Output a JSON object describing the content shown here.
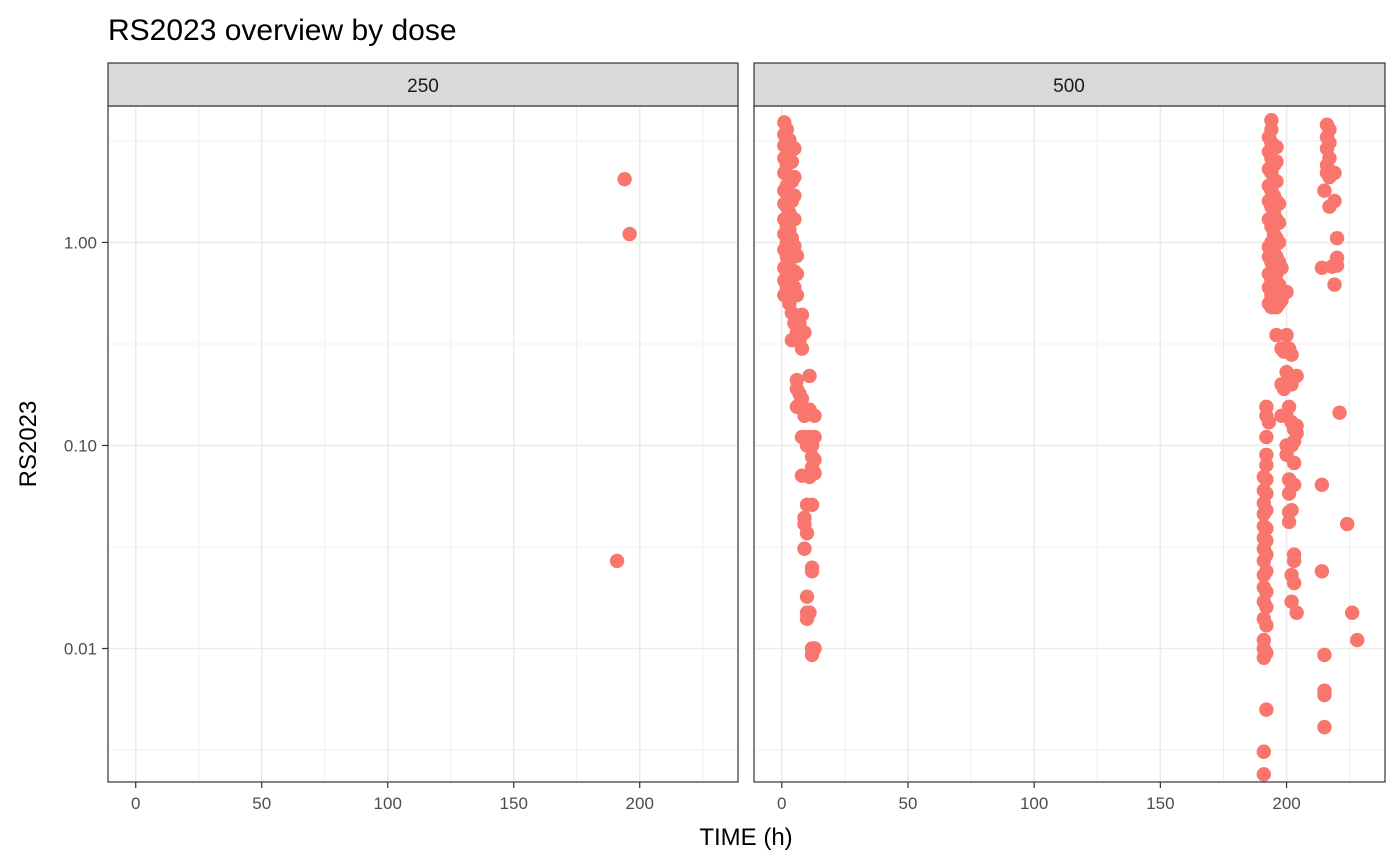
{
  "chart_data": {
    "type": "scatter",
    "title": "RS2023 overview by dose",
    "xlabel": "TIME (h)",
    "ylabel": "RS2023",
    "y_scale": "log10",
    "ylim": [
      0.0022,
      4.7
    ],
    "xlim": [
      -11,
      239
    ],
    "x_ticks": [
      0,
      50,
      100,
      150,
      200
    ],
    "x_tick_labels": [
      "0",
      "50",
      "100",
      "150",
      "200"
    ],
    "y_ticks": [
      0.01,
      0.1,
      1
    ],
    "y_tick_labels": [
      "0.01",
      "0.10",
      "1.00"
    ],
    "grid": true,
    "point_color": "#F8766D",
    "strip_fill": "#D9D9D9",
    "panels": [
      {
        "facet": "250",
        "points": [
          [
            194,
            2.05
          ],
          [
            196,
            1.1
          ],
          [
            191,
            0.027
          ]
        ]
      },
      {
        "facet": "500",
        "points": [
          [
            1,
            0.55
          ],
          [
            1,
            0.65
          ],
          [
            1,
            0.75
          ],
          [
            1,
            0.92
          ],
          [
            1,
            1.1
          ],
          [
            1,
            1.3
          ],
          [
            1,
            1.55
          ],
          [
            1,
            1.8
          ],
          [
            1,
            2.2
          ],
          [
            1,
            2.6
          ],
          [
            1,
            3.0
          ],
          [
            1,
            3.4
          ],
          [
            1,
            3.9
          ],
          [
            2,
            0.6
          ],
          [
            2,
            0.7
          ],
          [
            2,
            0.85
          ],
          [
            2,
            1.0
          ],
          [
            2,
            1.2
          ],
          [
            2,
            1.5
          ],
          [
            2,
            1.9
          ],
          [
            2,
            2.4
          ],
          [
            2,
            3.0
          ],
          [
            2,
            3.6
          ],
          [
            3,
            0.5
          ],
          [
            3,
            0.62
          ],
          [
            3,
            0.8
          ],
          [
            3,
            0.95
          ],
          [
            3,
            1.15
          ],
          [
            3,
            1.4
          ],
          [
            3,
            1.75
          ],
          [
            3,
            2.1
          ],
          [
            3,
            2.7
          ],
          [
            3,
            3.2
          ],
          [
            4,
            0.33
          ],
          [
            4,
            0.45
          ],
          [
            4,
            0.55
          ],
          [
            4,
            0.68
          ],
          [
            4,
            0.85
          ],
          [
            4,
            1.05
          ],
          [
            4,
            1.3
          ],
          [
            4,
            1.6
          ],
          [
            4,
            2.0
          ],
          [
            4,
            2.5
          ],
          [
            5,
            0.4
          ],
          [
            5,
            0.6
          ],
          [
            5,
            0.72
          ],
          [
            5,
            0.96
          ],
          [
            5,
            1.3
          ],
          [
            5,
            1.7
          ],
          [
            5,
            2.1
          ],
          [
            5,
            2.9
          ],
          [
            6,
            0.36
          ],
          [
            6,
            0.55
          ],
          [
            6,
            0.7
          ],
          [
            6,
            0.86
          ],
          [
            6,
            0.21
          ],
          [
            6,
            0.19
          ],
          [
            6,
            0.155
          ],
          [
            7,
            0.4
          ],
          [
            7,
            0.33
          ],
          [
            7,
            0.18
          ],
          [
            7,
            0.16
          ],
          [
            8,
            0.44
          ],
          [
            8,
            0.3
          ],
          [
            8,
            0.17
          ],
          [
            8,
            0.11
          ],
          [
            8,
            0.071
          ],
          [
            9,
            0.36
          ],
          [
            9,
            0.14
          ],
          [
            9,
            0.044
          ],
          [
            9,
            0.041
          ],
          [
            9,
            0.031
          ],
          [
            9,
            0.11
          ],
          [
            10,
            0.1
          ],
          [
            10,
            0.051
          ],
          [
            10,
            0.037
          ],
          [
            10,
            0.018
          ],
          [
            10,
            0.015
          ],
          [
            10,
            0.014
          ],
          [
            11,
            0.22
          ],
          [
            11,
            0.15
          ],
          [
            11,
            0.11
          ],
          [
            11,
            0.07
          ],
          [
            11,
            0.015
          ],
          [
            12,
            0.1
          ],
          [
            12,
            0.088
          ],
          [
            12,
            0.078
          ],
          [
            12,
            0.051
          ],
          [
            12,
            0.025
          ],
          [
            12,
            0.024
          ],
          [
            12,
            0.01
          ],
          [
            12,
            0.0093
          ],
          [
            13,
            0.14
          ],
          [
            13,
            0.11
          ],
          [
            13,
            0.085
          ],
          [
            13,
            0.073
          ],
          [
            13,
            0.01
          ],
          [
            191,
            0.0024
          ],
          [
            191,
            0.0031
          ],
          [
            191,
            0.009
          ],
          [
            191,
            0.01
          ],
          [
            191,
            0.011
          ],
          [
            191,
            0.014
          ],
          [
            191,
            0.017
          ],
          [
            191,
            0.02
          ],
          [
            191,
            0.023
          ],
          [
            191,
            0.027
          ],
          [
            191,
            0.031
          ],
          [
            191,
            0.035
          ],
          [
            191,
            0.04
          ],
          [
            191,
            0.046
          ],
          [
            191,
            0.052
          ],
          [
            191,
            0.06
          ],
          [
            191,
            0.07
          ],
          [
            192,
            0.005
          ],
          [
            192,
            0.0095
          ],
          [
            192,
            0.013
          ],
          [
            192,
            0.016
          ],
          [
            192,
            0.019
          ],
          [
            192,
            0.024
          ],
          [
            192,
            0.029
          ],
          [
            192,
            0.034
          ],
          [
            192,
            0.039
          ],
          [
            192,
            0.048
          ],
          [
            192,
            0.058
          ],
          [
            192,
            0.068
          ],
          [
            192,
            0.08
          ],
          [
            192,
            0.09
          ],
          [
            192,
            0.11
          ],
          [
            192,
            0.14
          ],
          [
            192,
            0.155
          ],
          [
            193,
            0.13
          ],
          [
            193,
            0.5
          ],
          [
            193,
            0.6
          ],
          [
            193,
            0.7
          ],
          [
            193,
            0.85
          ],
          [
            193,
            0.95
          ],
          [
            193,
            1.3
          ],
          [
            193,
            1.6
          ],
          [
            193,
            1.9
          ],
          [
            193,
            2.3
          ],
          [
            193,
            2.8
          ],
          [
            193,
            3.3
          ],
          [
            194,
            0.48
          ],
          [
            194,
            0.55
          ],
          [
            194,
            0.65
          ],
          [
            194,
            0.8
          ],
          [
            194,
            1.0
          ],
          [
            194,
            1.2
          ],
          [
            194,
            1.5
          ],
          [
            194,
            1.8
          ],
          [
            194,
            2.2
          ],
          [
            194,
            2.6
          ],
          [
            194,
            3.1
          ],
          [
            194,
            3.6
          ],
          [
            194,
            4.0
          ],
          [
            195,
            0.5
          ],
          [
            195,
            0.6
          ],
          [
            195,
            0.75
          ],
          [
            195,
            0.9
          ],
          [
            195,
            1.1
          ],
          [
            195,
            1.4
          ],
          [
            195,
            1.7
          ],
          [
            195,
            2.0
          ],
          [
            195,
            2.4
          ],
          [
            195,
            3.0
          ],
          [
            196,
            0.48
          ],
          [
            196,
            0.58
          ],
          [
            196,
            0.7
          ],
          [
            196,
            0.85
          ],
          [
            196,
            1.05
          ],
          [
            196,
            1.3
          ],
          [
            196,
            1.6
          ],
          [
            196,
            2.0
          ],
          [
            196,
            2.5
          ],
          [
            196,
            2.95
          ],
          [
            196,
            0.35
          ],
          [
            197,
            0.5
          ],
          [
            197,
            0.62
          ],
          [
            197,
            0.8
          ],
          [
            197,
            1.0
          ],
          [
            197,
            1.25
          ],
          [
            197,
            1.55
          ],
          [
            198,
            0.52
          ],
          [
            198,
            0.75
          ],
          [
            198,
            0.3
          ],
          [
            198,
            0.14
          ],
          [
            198,
            0.2
          ],
          [
            199,
            0.29
          ],
          [
            199,
            0.19
          ],
          [
            200,
            0.57
          ],
          [
            200,
            0.35
          ],
          [
            200,
            0.23
          ],
          [
            200,
            0.14
          ],
          [
            200,
            0.1
          ],
          [
            200,
            0.09
          ],
          [
            201,
            0.3
          ],
          [
            201,
            0.155
          ],
          [
            201,
            0.068
          ],
          [
            201,
            0.058
          ],
          [
            201,
            0.047
          ],
          [
            201,
            0.042
          ],
          [
            202,
            0.28
          ],
          [
            202,
            0.2
          ],
          [
            202,
            0.13
          ],
          [
            202,
            0.1
          ],
          [
            202,
            0.065
          ],
          [
            202,
            0.048
          ],
          [
            202,
            0.023
          ],
          [
            202,
            0.017
          ],
          [
            203,
            0.12
          ],
          [
            203,
            0.105
          ],
          [
            203,
            0.082
          ],
          [
            203,
            0.064
          ],
          [
            203,
            0.029
          ],
          [
            203,
            0.027
          ],
          [
            203,
            0.021
          ],
          [
            204,
            0.22
          ],
          [
            204,
            0.125
          ],
          [
            204,
            0.115
          ],
          [
            204,
            0.015
          ],
          [
            214,
            0.064
          ],
          [
            214,
            0.024
          ],
          [
            214,
            0.75
          ],
          [
            215,
            1.8
          ],
          [
            215,
            0.0093
          ],
          [
            215,
            0.0062
          ],
          [
            215,
            0.0059
          ],
          [
            215,
            0.0041
          ],
          [
            216,
            2.4
          ],
          [
            216,
            2.9
          ],
          [
            216,
            3.3
          ],
          [
            216,
            3.8
          ],
          [
            216,
            2.2
          ],
          [
            217,
            1.5
          ],
          [
            217,
            2.1
          ],
          [
            217,
            2.6
          ],
          [
            217,
            3.1
          ],
          [
            217,
            3.6
          ],
          [
            218,
            0.76
          ],
          [
            219,
            2.2
          ],
          [
            219,
            1.6
          ],
          [
            219,
            0.62
          ],
          [
            220,
            1.05
          ],
          [
            220,
            0.84
          ],
          [
            220,
            0.77
          ],
          [
            221,
            0.145
          ],
          [
            224,
            0.041
          ],
          [
            226,
            0.015
          ],
          [
            228,
            0.011
          ]
        ]
      }
    ]
  }
}
